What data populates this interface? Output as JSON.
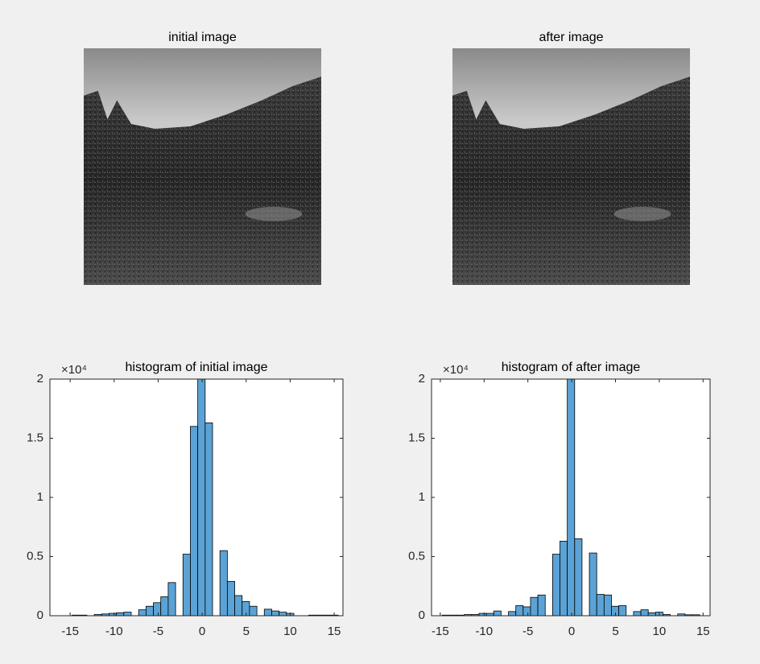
{
  "chart_data": [
    {
      "type": "image",
      "title": "initial image"
    },
    {
      "type": "image",
      "title": "after image"
    },
    {
      "type": "histogram",
      "title": "histogram of initial image",
      "color": "#5ba3d6",
      "y_exponent": "×10⁴",
      "bins": [
        -14.78,
        -13.94,
        -13.1,
        -12.26,
        -11.42,
        -10.58,
        -9.74,
        -8.9,
        -8.06,
        -7.22,
        -6.38,
        -5.54,
        -4.7,
        -3.86,
        -3.02,
        -2.18,
        -1.34,
        -0.5,
        0.34,
        1.18,
        2.02,
        2.86,
        3.7,
        4.54,
        5.38,
        6.22,
        7.06,
        7.9,
        8.74,
        9.58,
        10.42,
        11.26,
        12.1,
        12.94,
        13.78,
        14.62,
        15.46
      ],
      "values": [
        50,
        50,
        0,
        100,
        150,
        200,
        250,
        300,
        0,
        500,
        800,
        1100,
        1600,
        2800,
        0,
        5200,
        16000,
        21000,
        16300,
        0,
        5500,
        2900,
        1700,
        1200,
        800,
        0,
        550,
        400,
        300,
        200,
        0,
        0,
        50,
        50,
        50,
        50
      ],
      "xlim": [
        -17.3,
        16
      ],
      "xticks": [
        -15,
        -10,
        -5,
        0,
        5,
        10,
        15
      ],
      "ylim": [
        0,
        20000
      ],
      "yticks": [
        0,
        {
          "value": 5000,
          "label": "0.5"
        },
        {
          "value": 10000,
          "label": "1"
        },
        {
          "value": 15000,
          "label": "1.5"
        },
        {
          "value": 20000,
          "label": "2"
        }
      ]
    },
    {
      "type": "histogram",
      "title": "histogram of after image",
      "color": "#5ba3d6",
      "y_exponent": "×10⁴",
      "bins": [
        -14.78,
        -13.94,
        -13.1,
        -12.26,
        -11.42,
        -10.58,
        -9.74,
        -8.9,
        -8.06,
        -7.22,
        -6.38,
        -5.54,
        -4.7,
        -3.86,
        -3.02,
        -2.18,
        -1.34,
        -0.5,
        0.34,
        1.18,
        2.02,
        2.86,
        3.7,
        4.54,
        5.38,
        6.22,
        7.06,
        7.9,
        8.74,
        9.58,
        10.42,
        11.26,
        12.1,
        12.94,
        13.78,
        14.62,
        15.46
      ],
      "values": [
        50,
        50,
        50,
        100,
        100,
        200,
        200,
        400,
        0,
        350,
        850,
        750,
        1550,
        1750,
        0,
        5200,
        6300,
        21000,
        6500,
        0,
        5300,
        1800,
        1750,
        800,
        850,
        0,
        350,
        500,
        250,
        300,
        100,
        0,
        150,
        80,
        80,
        0
      ],
      "xlim": [
        -16,
        15.8
      ],
      "xticks": [
        -15,
        -10,
        -5,
        0,
        5,
        10,
        15
      ],
      "ylim": [
        0,
        20000
      ],
      "yticks": [
        0,
        {
          "value": 5000,
          "label": "0.5"
        },
        {
          "value": 10000,
          "label": "1"
        },
        {
          "value": 15000,
          "label": "1.5"
        },
        {
          "value": 20000,
          "label": "2"
        }
      ]
    }
  ]
}
